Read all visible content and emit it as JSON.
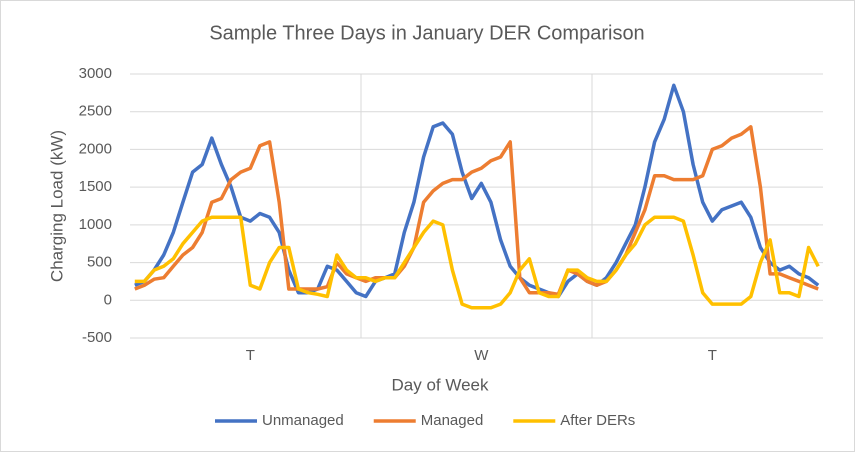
{
  "chart_data": {
    "type": "line",
    "title": "Sample Three Days in January DER Comparison",
    "x_label": "Day of Week",
    "y_label": "Charging Load (kW)",
    "categories": [
      null,
      null,
      null,
      null,
      null,
      null,
      null,
      null,
      null,
      null,
      null,
      null,
      "T",
      null,
      null,
      null,
      null,
      null,
      null,
      null,
      null,
      null,
      null,
      null,
      null,
      null,
      null,
      null,
      null,
      null,
      null,
      null,
      null,
      null,
      null,
      null,
      "W",
      null,
      null,
      null,
      null,
      null,
      null,
      null,
      null,
      null,
      null,
      null,
      null,
      null,
      null,
      null,
      null,
      null,
      null,
      null,
      null,
      null,
      null,
      null,
      "T",
      null,
      null,
      null,
      null,
      null,
      null,
      null,
      null,
      null,
      null,
      null
    ],
    "series": [
      {
        "name": "Unmanaged",
        "color": "#4472c4",
        "values": [
          200,
          250,
          400,
          600,
          900,
          1300,
          1700,
          1800,
          2150,
          1800,
          1500,
          1100,
          1050,
          1150,
          1100,
          900,
          400,
          100,
          100,
          150,
          450,
          400,
          250,
          100,
          50,
          250,
          300,
          350,
          900,
          1300,
          1900,
          2300,
          2350,
          2200,
          1700,
          1350,
          1550,
          1300,
          800,
          450,
          300,
          200,
          150,
          100,
          50,
          250,
          350,
          250,
          200,
          300,
          500,
          750,
          1000,
          1500,
          2100,
          2400,
          2850,
          2500,
          1800,
          1300,
          1050,
          1200,
          1250,
          1300,
          1100,
          700,
          500,
          400,
          450,
          350,
          300,
          200
        ]
      },
      {
        "name": "Managed",
        "color": "#ed7d31",
        "values": [
          150,
          200,
          280,
          300,
          450,
          600,
          700,
          900,
          1300,
          1350,
          1600,
          1700,
          1750,
          2050,
          2100,
          1300,
          150,
          150,
          150,
          150,
          180,
          500,
          350,
          300,
          250,
          300,
          300,
          300,
          450,
          700,
          1300,
          1450,
          1550,
          1600,
          1600,
          1700,
          1750,
          1850,
          1900,
          2100,
          300,
          100,
          100,
          100,
          80,
          400,
          350,
          250,
          200,
          250,
          400,
          600,
          900,
          1200,
          1650,
          1650,
          1600,
          1600,
          1600,
          1650,
          2000,
          2050,
          2150,
          2200,
          2300,
          1500,
          350,
          350,
          300,
          250,
          200,
          150
        ]
      },
      {
        "name": "After DERs",
        "color": "#ffc000",
        "values": [
          250,
          250,
          400,
          450,
          550,
          750,
          900,
          1050,
          1100,
          1100,
          1100,
          1100,
          200,
          150,
          500,
          700,
          700,
          150,
          100,
          80,
          50,
          600,
          400,
          300,
          300,
          250,
          300,
          300,
          500,
          700,
          900,
          1050,
          1000,
          400,
          -50,
          -100,
          -100,
          -100,
          -50,
          100,
          400,
          550,
          100,
          50,
          50,
          400,
          400,
          300,
          250,
          250,
          400,
          600,
          750,
          1000,
          1100,
          1100,
          1100,
          1050,
          600,
          100,
          -50,
          -50,
          -50,
          -50,
          50,
          500,
          800,
          100,
          100,
          50,
          700,
          450
        ]
      }
    ],
    "ylim": [
      -500,
      3000
    ],
    "yticks": [
      -500,
      0,
      500,
      1000,
      1500,
      2000,
      2500,
      3000
    ],
    "grid": true,
    "legend": "bottom"
  }
}
